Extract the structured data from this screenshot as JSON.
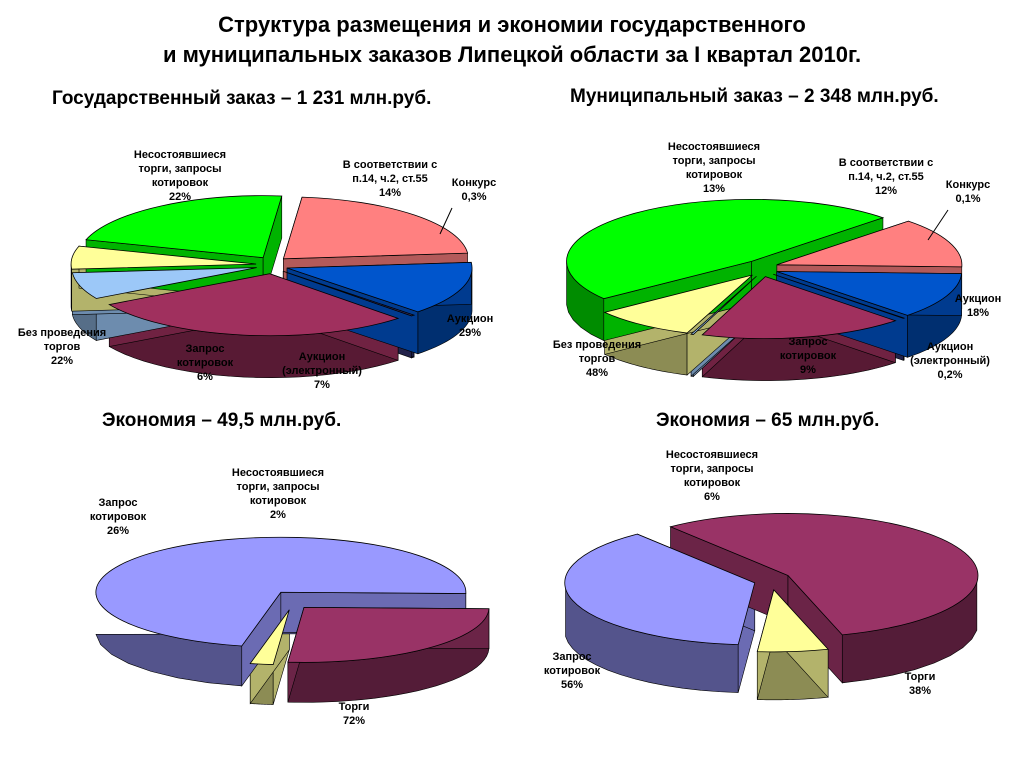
{
  "title_line1": "Структура  размещения и экономии государственного",
  "title_line2": "и муниципальных заказов Липецкой области за I квартал 2010г.",
  "chart_data": [
    {
      "type": "pie",
      "title": "Государственный заказ – 1 231 млн.руб.",
      "slices": [
        {
          "id": "konkurs",
          "lines": [
            "Конкурс",
            "0,3%"
          ],
          "value": 0.3,
          "color": "#30306a"
        },
        {
          "id": "auction",
          "lines": [
            "Аукцион",
            "29%"
          ],
          "value": 29,
          "color": "#a0305e"
        },
        {
          "id": "auction_el",
          "lines": [
            "Аукцион",
            "(электронный)",
            "7%"
          ],
          "value": 7,
          "color": "#9cc8f8"
        },
        {
          "id": "zapros",
          "lines": [
            "Запрос",
            "котировок",
            "6%"
          ],
          "value": 6,
          "color": "#ffff99"
        },
        {
          "id": "bez",
          "lines": [
            "Без проведения",
            "торгов",
            "22%"
          ],
          "value": 22,
          "color": "#00ff00"
        },
        {
          "id": "nesost",
          "lines": [
            "Несостоявшиеся",
            "торги, запросы",
            "котировок",
            "22%"
          ],
          "value": 22,
          "color": "#ff8080"
        },
        {
          "id": "sootv",
          "lines": [
            "В соответствии с",
            "п.14, ч.2, ст.55",
            "14%"
          ],
          "value": 14,
          "color": "#0055cc"
        }
      ]
    },
    {
      "type": "pie",
      "title": "Муниципальный заказ – 2 348 млн.руб.",
      "slices": [
        {
          "id": "konkurs",
          "lines": [
            "Конкурс",
            "0,1%"
          ],
          "value": 0.1,
          "color": "#30306a"
        },
        {
          "id": "auction",
          "lines": [
            "Аукцион",
            "18%"
          ],
          "value": 18,
          "color": "#a0305e"
        },
        {
          "id": "auction_el",
          "lines": [
            "Аукцион",
            "(электронный)",
            "0,2%"
          ],
          "value": 0.2,
          "color": "#9cc8f8"
        },
        {
          "id": "zapros",
          "lines": [
            "Запрос",
            "котировок",
            "9%"
          ],
          "value": 9,
          "color": "#ffff99"
        },
        {
          "id": "bez",
          "lines": [
            "Без проведения",
            "торгов",
            "48%"
          ],
          "value": 48,
          "color": "#00ff00"
        },
        {
          "id": "nesost",
          "lines": [
            "Несостоявшиеся",
            "торги, запросы",
            "котировок",
            "13%"
          ],
          "value": 13,
          "color": "#ff8080"
        },
        {
          "id": "sootv",
          "lines": [
            "В соответствии с",
            "п.14, ч.2, ст.55",
            "12%"
          ],
          "value": 12,
          "color": "#0055cc"
        }
      ]
    },
    {
      "type": "pie",
      "title": "Экономия  – 49,5 млн.руб.",
      "slices": [
        {
          "id": "nesost",
          "lines": [
            "Несостоявшиеся",
            "торги, запросы",
            "котировок",
            "2%"
          ],
          "value": 2,
          "color": "#ffff99"
        },
        {
          "id": "torgi",
          "lines": [
            "Торги",
            "72%"
          ],
          "value": 72,
          "color": "#9999ff"
        },
        {
          "id": "zapros",
          "lines": [
            "Запрос",
            "котировок",
            "26%"
          ],
          "value": 26,
          "color": "#993366"
        }
      ]
    },
    {
      "type": "pie",
      "title": "Экономия  – 65 млн.руб.",
      "slices": [
        {
          "id": "torgi",
          "lines": [
            "Торги",
            "38%"
          ],
          "value": 38,
          "color": "#9999ff"
        },
        {
          "id": "zapros",
          "lines": [
            "Запрос",
            "котировок",
            "56%"
          ],
          "value": 56,
          "color": "#993366"
        },
        {
          "id": "nesost",
          "lines": [
            "Несостоявшиеся",
            "торги, запросы",
            "котировок",
            "6%"
          ],
          "value": 6,
          "color": "#ffff99"
        }
      ]
    }
  ]
}
